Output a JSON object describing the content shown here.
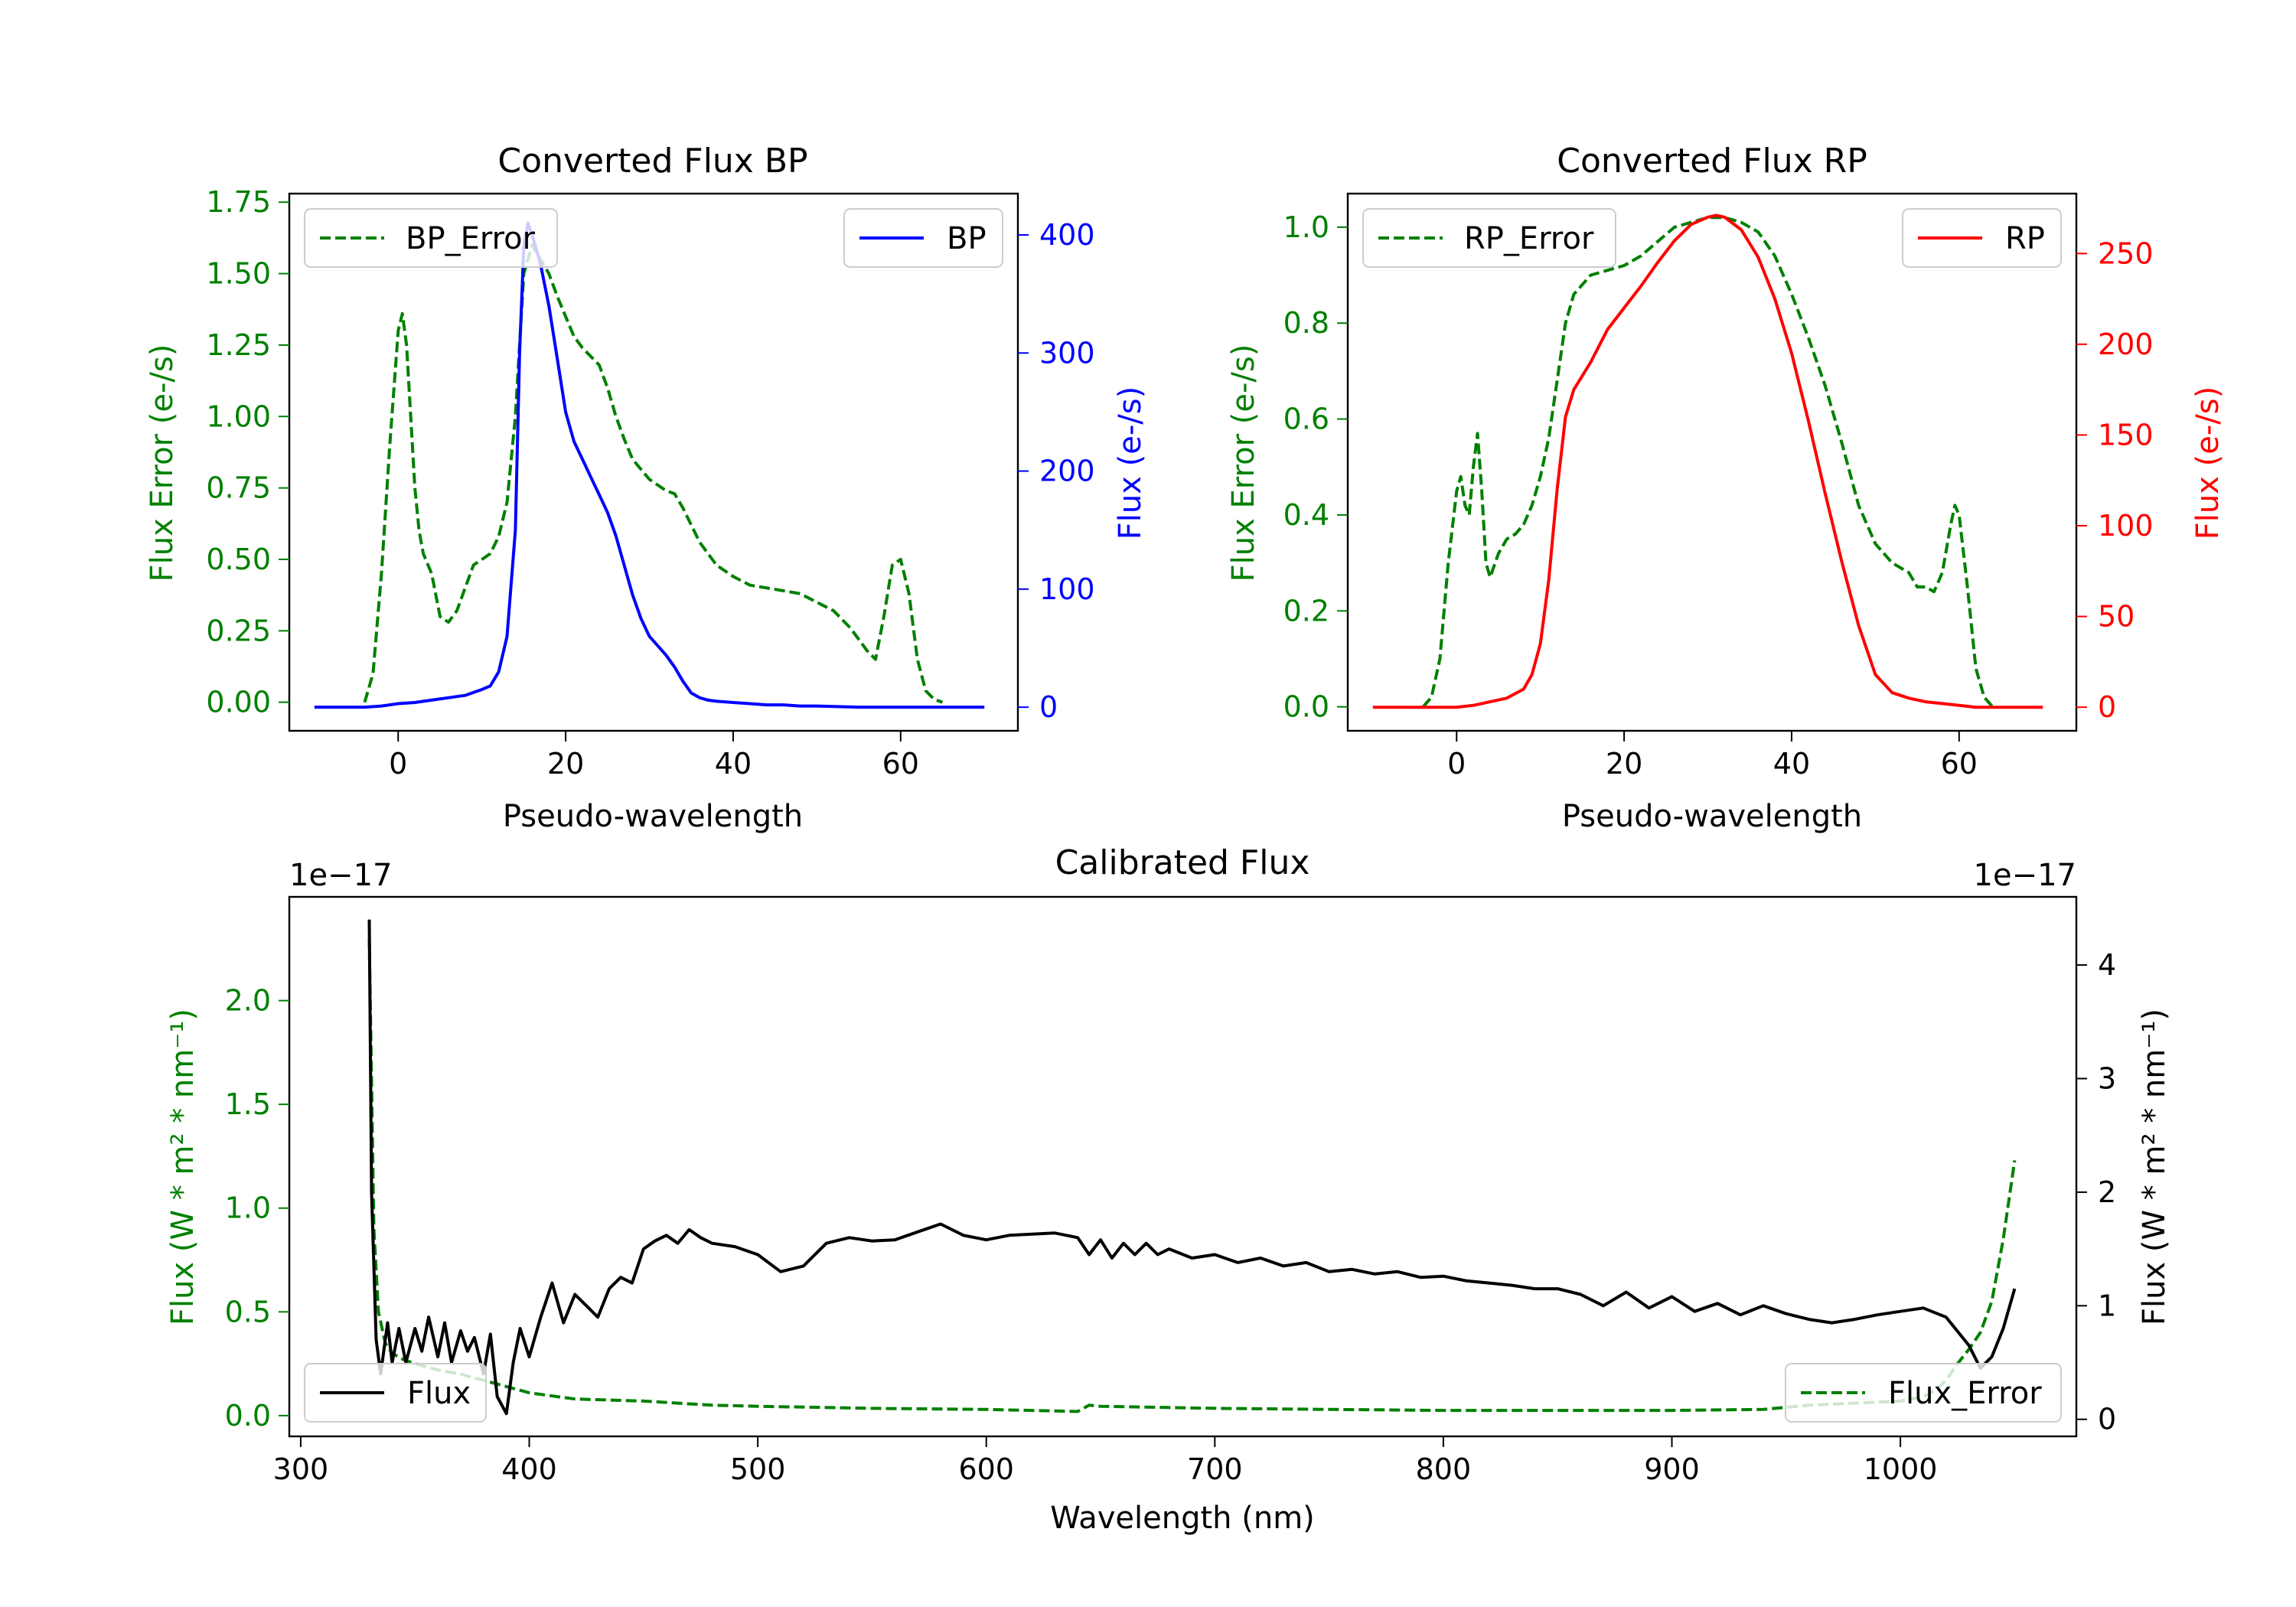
{
  "chart_data": [
    {
      "type": "line",
      "title": "Converted Flux BP",
      "xlabel": "Pseudo-wavelength",
      "xlim": [
        -13,
        74
      ],
      "xticks": [
        0,
        20,
        40,
        60
      ],
      "ylabel_left": "Flux Error (e-/s)",
      "ylim_left": [
        -0.1,
        1.78
      ],
      "yticks_left": [
        "0.00",
        "0.25",
        "0.50",
        "0.75",
        "1.00",
        "1.25",
        "1.50",
        "1.75"
      ],
      "ylabel_right": "Flux (e-/s)",
      "ylim_right": [
        -20,
        435
      ],
      "yticks_right": [
        "0",
        "100",
        "200",
        "300",
        "400"
      ],
      "color_left": "#008000",
      "color_right": "#0000ff",
      "series": [
        {
          "name": "BP_Error",
          "axis": "left",
          "style": "dashed",
          "color": "#008000",
          "x": [
            -4,
            -3,
            -2,
            -1,
            0,
            0.5,
            1,
            2,
            2.5,
            3,
            4,
            5,
            6,
            7,
            8,
            9,
            10,
            11,
            12,
            13,
            14,
            15,
            16,
            17,
            18,
            19,
            20,
            21,
            22,
            24,
            25,
            26,
            27,
            28,
            30,
            31,
            32,
            33,
            34,
            35,
            36,
            38,
            40,
            42,
            44,
            46,
            48,
            50,
            52,
            54,
            55,
            56,
            57,
            58,
            59,
            60,
            61,
            62,
            63,
            64,
            65
          ],
          "y": [
            0.0,
            0.1,
            0.45,
            0.9,
            1.3,
            1.36,
            1.25,
            0.75,
            0.6,
            0.52,
            0.45,
            0.3,
            0.28,
            0.32,
            0.4,
            0.48,
            0.5,
            0.52,
            0.58,
            0.7,
            1.0,
            1.5,
            1.6,
            1.55,
            1.5,
            1.42,
            1.35,
            1.28,
            1.24,
            1.18,
            1.1,
            1.0,
            0.92,
            0.85,
            0.78,
            0.76,
            0.74,
            0.73,
            0.68,
            0.62,
            0.56,
            0.48,
            0.44,
            0.41,
            0.4,
            0.39,
            0.38,
            0.35,
            0.32,
            0.26,
            0.22,
            0.18,
            0.15,
            0.3,
            0.48,
            0.5,
            0.38,
            0.15,
            0.04,
            0.01,
            0.0
          ]
        },
        {
          "name": "BP",
          "axis": "right",
          "style": "solid",
          "color": "#0000ff",
          "x": [
            -10,
            -4,
            -2,
            0,
            2,
            4,
            6,
            8,
            10,
            11,
            12,
            13,
            14,
            14.5,
            15,
            15.5,
            16,
            17,
            18,
            19,
            20,
            21,
            22,
            23,
            24,
            25,
            26,
            27,
            28,
            29,
            30,
            31,
            32,
            33,
            34,
            35,
            36,
            37,
            38,
            40,
            42,
            44,
            46,
            48,
            50,
            55,
            60,
            65,
            70
          ],
          "y": [
            0,
            0,
            1,
            3,
            4,
            6,
            8,
            10,
            15,
            18,
            30,
            60,
            150,
            300,
            390,
            410,
            400,
            375,
            340,
            295,
            250,
            225,
            210,
            195,
            180,
            165,
            145,
            120,
            95,
            75,
            60,
            52,
            44,
            34,
            22,
            12,
            8,
            6,
            5,
            4,
            3,
            2,
            2,
            1,
            1,
            0,
            0,
            0,
            0
          ]
        }
      ],
      "legend": [
        {
          "label": "BP_Error",
          "position": "upper-left"
        },
        {
          "label": "BP",
          "position": "upper-right"
        }
      ]
    },
    {
      "type": "line",
      "title": "Converted Flux RP",
      "xlabel": "Pseudo-wavelength",
      "xlim": [
        -13,
        74
      ],
      "xticks": [
        0,
        20,
        40,
        60
      ],
      "ylabel_left": "Flux Error (e-/s)",
      "ylim_left": [
        -0.05,
        1.07
      ],
      "yticks_left": [
        "0.0",
        "0.2",
        "0.4",
        "0.6",
        "0.8",
        "1.0"
      ],
      "ylabel_right": "Flux (e-/s)",
      "ylim_right": [
        -13,
        283
      ],
      "yticks_right": [
        "0",
        "50",
        "100",
        "150",
        "200",
        "250"
      ],
      "color_left": "#008000",
      "color_right": "#ff0000",
      "series": [
        {
          "name": "RP_Error",
          "axis": "left",
          "style": "dashed",
          "color": "#008000",
          "x": [
            -4,
            -3,
            -2,
            -1,
            0,
            0.5,
            1,
            1.5,
            2,
            2.5,
            3,
            3.5,
            4,
            5,
            6,
            7,
            8,
            9,
            10,
            11,
            12,
            13,
            14,
            15,
            16,
            18,
            20,
            22,
            24,
            26,
            28,
            30,
            32,
            34,
            36,
            38,
            40,
            42,
            44,
            46,
            48,
            50,
            52,
            54,
            55,
            56,
            57,
            58,
            59,
            59.5,
            60,
            61,
            62,
            63,
            64
          ],
          "y": [
            0.0,
            0.02,
            0.1,
            0.3,
            0.45,
            0.48,
            0.42,
            0.4,
            0.5,
            0.57,
            0.45,
            0.3,
            0.27,
            0.32,
            0.35,
            0.36,
            0.38,
            0.42,
            0.48,
            0.56,
            0.68,
            0.8,
            0.86,
            0.88,
            0.9,
            0.91,
            0.92,
            0.94,
            0.97,
            1.0,
            1.01,
            1.02,
            1.02,
            1.01,
            0.99,
            0.94,
            0.86,
            0.77,
            0.67,
            0.55,
            0.42,
            0.34,
            0.3,
            0.28,
            0.25,
            0.25,
            0.24,
            0.28,
            0.38,
            0.42,
            0.4,
            0.25,
            0.08,
            0.02,
            0.0
          ]
        },
        {
          "name": "RP",
          "axis": "right",
          "style": "solid",
          "color": "#ff0000",
          "x": [
            -10,
            -4,
            0,
            2,
            4,
            6,
            8,
            9,
            10,
            11,
            12,
            13,
            14,
            16,
            18,
            20,
            22,
            24,
            26,
            28,
            30,
            31,
            32,
            34,
            36,
            38,
            40,
            42,
            44,
            46,
            48,
            50,
            52,
            54,
            56,
            58,
            60,
            62,
            65,
            70
          ],
          "y": [
            0,
            0,
            0,
            1,
            3,
            5,
            10,
            18,
            35,
            70,
            120,
            160,
            175,
            190,
            208,
            220,
            232,
            245,
            257,
            266,
            270,
            271,
            270,
            263,
            248,
            225,
            195,
            158,
            118,
            80,
            45,
            18,
            8,
            5,
            3,
            2,
            1,
            0,
            0,
            0
          ]
        }
      ],
      "legend": [
        {
          "label": "RP_Error",
          "position": "upper-left"
        },
        {
          "label": "RP",
          "position": "upper-right"
        }
      ]
    },
    {
      "type": "line",
      "title": "Calibrated Flux",
      "xlabel": "Wavelength (nm)",
      "xlim": [
        295,
        1077
      ],
      "xticks": [
        300,
        400,
        500,
        600,
        700,
        800,
        900,
        1000
      ],
      "ylabel_left": "Flux (W * m² * nm⁻¹)",
      "ylim_left": [
        -0.1,
        2.5
      ],
      "yticks_left": [
        "0.0",
        "0.5",
        "1.0",
        "1.5",
        "2.0"
      ],
      "offset_left": "1e−17",
      "ylabel_right": "Flux (W * m² * nm⁻¹)",
      "ylim_right": [
        -0.15,
        4.6
      ],
      "yticks_right": [
        "0",
        "1",
        "2",
        "3",
        "4"
      ],
      "offset_right": "1e−17",
      "color_left": "#008000",
      "color_right": "#000000",
      "series": [
        {
          "name": "Flux_Error",
          "axis": "left",
          "style": "dashed",
          "color": "#008000",
          "x": [
            330,
            332,
            334,
            337,
            340,
            345,
            350,
            360,
            370,
            380,
            390,
            400,
            420,
            450,
            480,
            500,
            550,
            600,
            640,
            645,
            650,
            700,
            750,
            800,
            850,
            900,
            940,
            960,
            980,
            1000,
            1010,
            1015,
            1020,
            1025,
            1030,
            1035,
            1040,
            1045,
            1050
          ],
          "y": [
            2.3,
            0.9,
            0.5,
            0.35,
            0.3,
            0.27,
            0.25,
            0.22,
            0.2,
            0.17,
            0.14,
            0.11,
            0.08,
            0.07,
            0.05,
            0.045,
            0.035,
            0.03,
            0.02,
            0.05,
            0.045,
            0.035,
            0.03,
            0.025,
            0.025,
            0.025,
            0.03,
            0.05,
            0.06,
            0.07,
            0.09,
            0.12,
            0.17,
            0.25,
            0.32,
            0.4,
            0.55,
            0.85,
            1.23
          ]
        },
        {
          "name": "Flux",
          "axis": "right",
          "style": "solid",
          "color": "#000000",
          "x": [
            330,
            331,
            333,
            335,
            338,
            340,
            343,
            346,
            350,
            353,
            356,
            360,
            363,
            366,
            370,
            373,
            376,
            380,
            383,
            386,
            390,
            393,
            396,
            400,
            405,
            410,
            415,
            420,
            425,
            430,
            435,
            440,
            445,
            450,
            455,
            460,
            465,
            470,
            475,
            480,
            490,
            500,
            510,
            520,
            530,
            540,
            550,
            560,
            570,
            580,
            590,
            600,
            610,
            620,
            630,
            640,
            645,
            650,
            655,
            660,
            665,
            670,
            675,
            680,
            690,
            700,
            710,
            720,
            730,
            740,
            750,
            760,
            770,
            780,
            790,
            800,
            810,
            820,
            830,
            840,
            850,
            860,
            870,
            880,
            890,
            900,
            910,
            920,
            930,
            940,
            950,
            960,
            970,
            980,
            990,
            1000,
            1010,
            1020,
            1030,
            1035,
            1040,
            1045,
            1050
          ],
          "y": [
            4.4,
            2.0,
            0.7,
            0.4,
            0.85,
            0.5,
            0.8,
            0.5,
            0.8,
            0.6,
            0.9,
            0.55,
            0.85,
            0.5,
            0.78,
            0.6,
            0.72,
            0.4,
            0.75,
            0.2,
            0.05,
            0.5,
            0.8,
            0.55,
            0.9,
            1.2,
            0.85,
            1.1,
            1.0,
            0.9,
            1.15,
            1.25,
            1.2,
            1.5,
            1.57,
            1.62,
            1.55,
            1.67,
            1.6,
            1.55,
            1.52,
            1.45,
            1.3,
            1.35,
            1.55,
            1.6,
            1.57,
            1.58,
            1.65,
            1.72,
            1.62,
            1.58,
            1.62,
            1.63,
            1.64,
            1.6,
            1.45,
            1.58,
            1.42,
            1.55,
            1.45,
            1.55,
            1.45,
            1.5,
            1.42,
            1.45,
            1.38,
            1.42,
            1.35,
            1.38,
            1.3,
            1.32,
            1.28,
            1.3,
            1.25,
            1.26,
            1.22,
            1.2,
            1.18,
            1.15,
            1.15,
            1.1,
            1.0,
            1.12,
            0.98,
            1.08,
            0.95,
            1.02,
            0.92,
            1.0,
            0.93,
            0.88,
            0.85,
            0.88,
            0.92,
            0.95,
            0.98,
            0.9,
            0.65,
            0.45,
            0.55,
            0.8,
            1.15
          ]
        }
      ],
      "legend": [
        {
          "label": "Flux",
          "position": "lower-left"
        },
        {
          "label": "Flux_Error",
          "position": "lower-right"
        }
      ]
    }
  ]
}
